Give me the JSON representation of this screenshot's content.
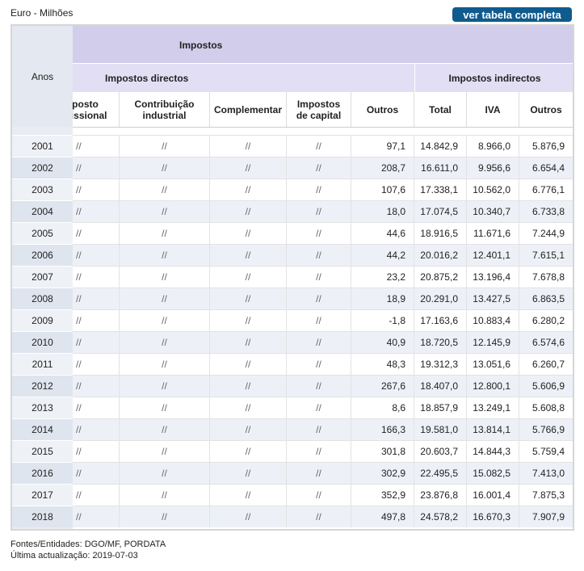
{
  "header": {
    "unit": "Euro - Milhões",
    "button": "ver tabela completa"
  },
  "table": {
    "corner": "Anos",
    "group": "Impostos",
    "subgroups": [
      "Impostos directos",
      "Impostos indirectos"
    ],
    "columns": [
      "Imposto profissional",
      "Contribuição industrial",
      "Complementar",
      "Impostos de capital",
      "Outros",
      "Total",
      "IVA",
      "Outros"
    ],
    "rows": [
      [
        "2001",
        "//",
        "//",
        "//",
        "//",
        "97,1",
        "14.842,9",
        "8.966,0",
        "5.876,9"
      ],
      [
        "2002",
        "//",
        "//",
        "//",
        "//",
        "208,7",
        "16.611,0",
        "9.956,6",
        "6.654,4"
      ],
      [
        "2003",
        "//",
        "//",
        "//",
        "//",
        "107,6",
        "17.338,1",
        "10.562,0",
        "6.776,1"
      ],
      [
        "2004",
        "//",
        "//",
        "//",
        "//",
        "18,0",
        "17.074,5",
        "10.340,7",
        "6.733,8"
      ],
      [
        "2005",
        "//",
        "//",
        "//",
        "//",
        "44,6",
        "18.916,5",
        "11.671,6",
        "7.244,9"
      ],
      [
        "2006",
        "//",
        "//",
        "//",
        "//",
        "44,2",
        "20.016,2",
        "12.401,1",
        "7.615,1"
      ],
      [
        "2007",
        "//",
        "//",
        "//",
        "//",
        "23,2",
        "20.875,2",
        "13.196,4",
        "7.678,8"
      ],
      [
        "2008",
        "//",
        "//",
        "//",
        "//",
        "18,9",
        "20.291,0",
        "13.427,5",
        "6.863,5"
      ],
      [
        "2009",
        "//",
        "//",
        "//",
        "//",
        "-1,8",
        "17.163,6",
        "10.883,4",
        "6.280,2"
      ],
      [
        "2010",
        "//",
        "//",
        "//",
        "//",
        "40,9",
        "18.720,5",
        "12.145,9",
        "6.574,6"
      ],
      [
        "2011",
        "//",
        "//",
        "//",
        "//",
        "48,3",
        "19.312,3",
        "13.051,6",
        "6.260,7"
      ],
      [
        "2012",
        "//",
        "//",
        "//",
        "//",
        "267,6",
        "18.407,0",
        "12.800,1",
        "5.606,9"
      ],
      [
        "2013",
        "//",
        "//",
        "//",
        "//",
        "8,6",
        "18.857,9",
        "13.249,1",
        "5.608,8"
      ],
      [
        "2014",
        "//",
        "//",
        "//",
        "//",
        "166,3",
        "19.581,0",
        "13.814,1",
        "5.766,9"
      ],
      [
        "2015",
        "//",
        "//",
        "//",
        "//",
        "301,8",
        "20.603,7",
        "14.844,3",
        "5.759,4"
      ],
      [
        "2016",
        "//",
        "//",
        "//",
        "//",
        "302,9",
        "22.495,5",
        "15.082,5",
        "7.413,0"
      ],
      [
        "2017",
        "//",
        "//",
        "//",
        "//",
        "352,9",
        "23.876,8",
        "16.001,4",
        "7.875,3"
      ],
      [
        "2018",
        "//",
        "//",
        "//",
        "//",
        "497,8",
        "24.578,2",
        "16.670,3",
        "7.907,9"
      ]
    ]
  },
  "footer": {
    "sources": "Fontes/Entidades: DGO/MF, PORDATA",
    "updated": "Última actualização: 2019-07-03"
  }
}
